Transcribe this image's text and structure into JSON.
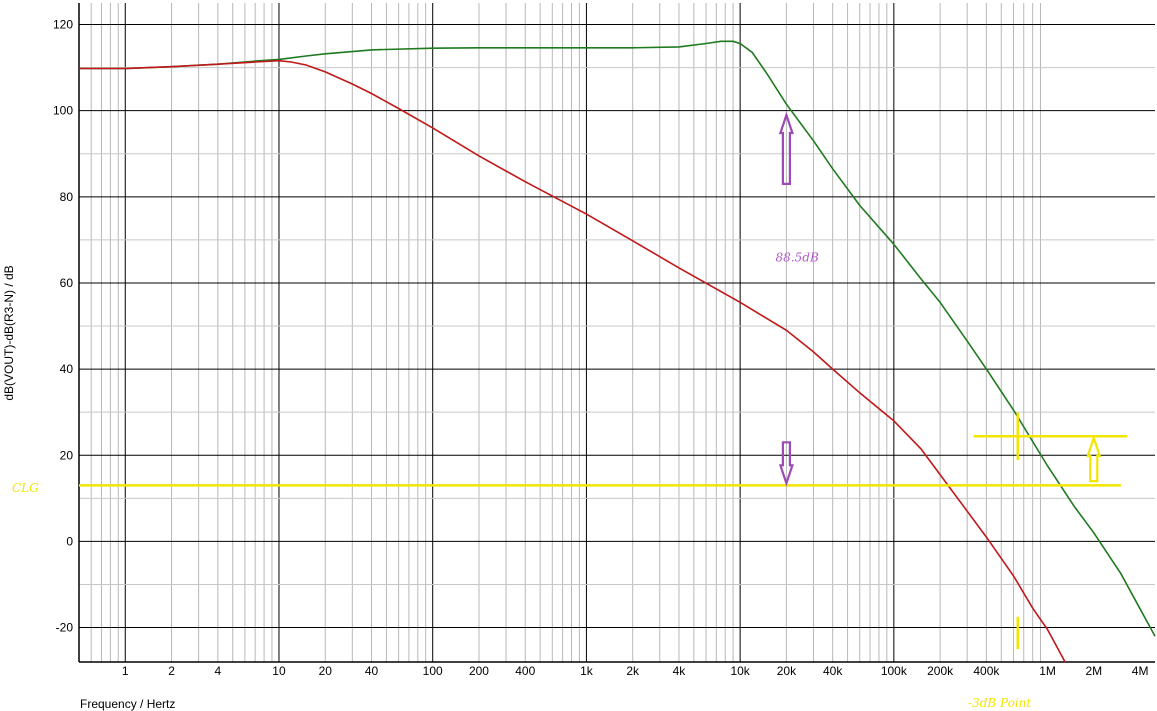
{
  "chart_data": {
    "type": "line",
    "title": "",
    "xlabel": "Frequency / Hertz",
    "ylabel": "dB(VOUT)-dB(R3-N) / dB",
    "xscale": "log",
    "xlim": [
      0.5,
      5000000
    ],
    "ylim": [
      -28,
      125
    ],
    "grid": true,
    "x_ticks": [
      {
        "v": 1,
        "label": "1"
      },
      {
        "v": 2,
        "label": "2"
      },
      {
        "v": 4,
        "label": "4"
      },
      {
        "v": 10,
        "label": "10"
      },
      {
        "v": 20,
        "label": "20"
      },
      {
        "v": 40,
        "label": "40"
      },
      {
        "v": 100,
        "label": "100"
      },
      {
        "v": 200,
        "label": "200"
      },
      {
        "v": 400,
        "label": "400"
      },
      {
        "v": 1000,
        "label": "1k"
      },
      {
        "v": 2000,
        "label": "2k"
      },
      {
        "v": 4000,
        "label": "4k"
      },
      {
        "v": 10000,
        "label": "10k"
      },
      {
        "v": 20000,
        "label": "20k"
      },
      {
        "v": 40000,
        "label": "40k"
      },
      {
        "v": 100000,
        "label": "100k"
      },
      {
        "v": 200000,
        "label": "200k"
      },
      {
        "v": 400000,
        "label": "400k"
      },
      {
        "v": 1000000,
        "label": "1M"
      },
      {
        "v": 2000000,
        "label": "2M"
      },
      {
        "v": 4000000,
        "label": "4M"
      }
    ],
    "y_ticks": [
      {
        "v": -20,
        "label": "-20"
      },
      {
        "v": 0,
        "label": "0"
      },
      {
        "v": 20,
        "label": "20"
      },
      {
        "v": 40,
        "label": "40"
      },
      {
        "v": 60,
        "label": "60"
      },
      {
        "v": 80,
        "label": "80"
      },
      {
        "v": 100,
        "label": "100"
      },
      {
        "v": 120,
        "label": "120"
      }
    ],
    "series": [
      {
        "color": "#1f7a1f",
        "x": [
          0.5,
          1,
          2,
          4,
          7,
          10,
          15,
          20,
          40,
          100,
          200,
          400,
          1000,
          2000,
          4000,
          6000,
          7500,
          9000,
          10000,
          12000,
          15000,
          20000,
          30000,
          40000,
          60000,
          100000,
          150000,
          200000,
          300000,
          400000,
          600000,
          1000000,
          1500000,
          2000000,
          3000000,
          5000000
        ],
        "y": [
          109.8,
          109.8,
          110.2,
          110.8,
          111.5,
          111.9,
          112.7,
          113.2,
          114.1,
          114.5,
          114.6,
          114.6,
          114.6,
          114.6,
          114.8,
          115.6,
          116.1,
          116.1,
          115.6,
          113.5,
          108.5,
          101.5,
          93.0,
          86.5,
          78.0,
          69.0,
          61.0,
          55.5,
          46.5,
          40.0,
          30.5,
          17.5,
          8.0,
          2.0,
          -7.5,
          -22.0
        ]
      },
      {
        "color": "#c01818",
        "x": [
          0.5,
          1,
          2,
          4,
          7,
          10,
          12,
          15,
          20,
          30,
          40,
          60,
          100,
          200,
          400,
          1000,
          2000,
          4000,
          10000,
          20000,
          30000,
          40000,
          60000,
          100000,
          150000,
          200000,
          300000,
          400000,
          600000,
          800000,
          1000000,
          1300000
        ],
        "y": [
          109.8,
          109.8,
          110.2,
          110.8,
          111.3,
          111.6,
          111.3,
          110.6,
          109.0,
          106.2,
          104.0,
          100.5,
          96.0,
          89.5,
          83.5,
          76.0,
          69.8,
          63.5,
          55.5,
          49.0,
          44.0,
          40.0,
          34.5,
          28.0,
          21.5,
          15.5,
          7.0,
          1.0,
          -8.0,
          -15.5,
          -20.5,
          -28.0
        ]
      }
    ],
    "annotations": {
      "clg_label": "CLG",
      "clg_level": 13,
      "minus3db_level": 24.4,
      "minus3db_x": 640000,
      "gain_label": "88.5dB",
      "gain_label_x": 17000,
      "gain_label_y": 65,
      "minus3db_label": "-3dB Point",
      "arrow_color": "#9b4bb3",
      "marker_color": "#f2e600"
    }
  }
}
